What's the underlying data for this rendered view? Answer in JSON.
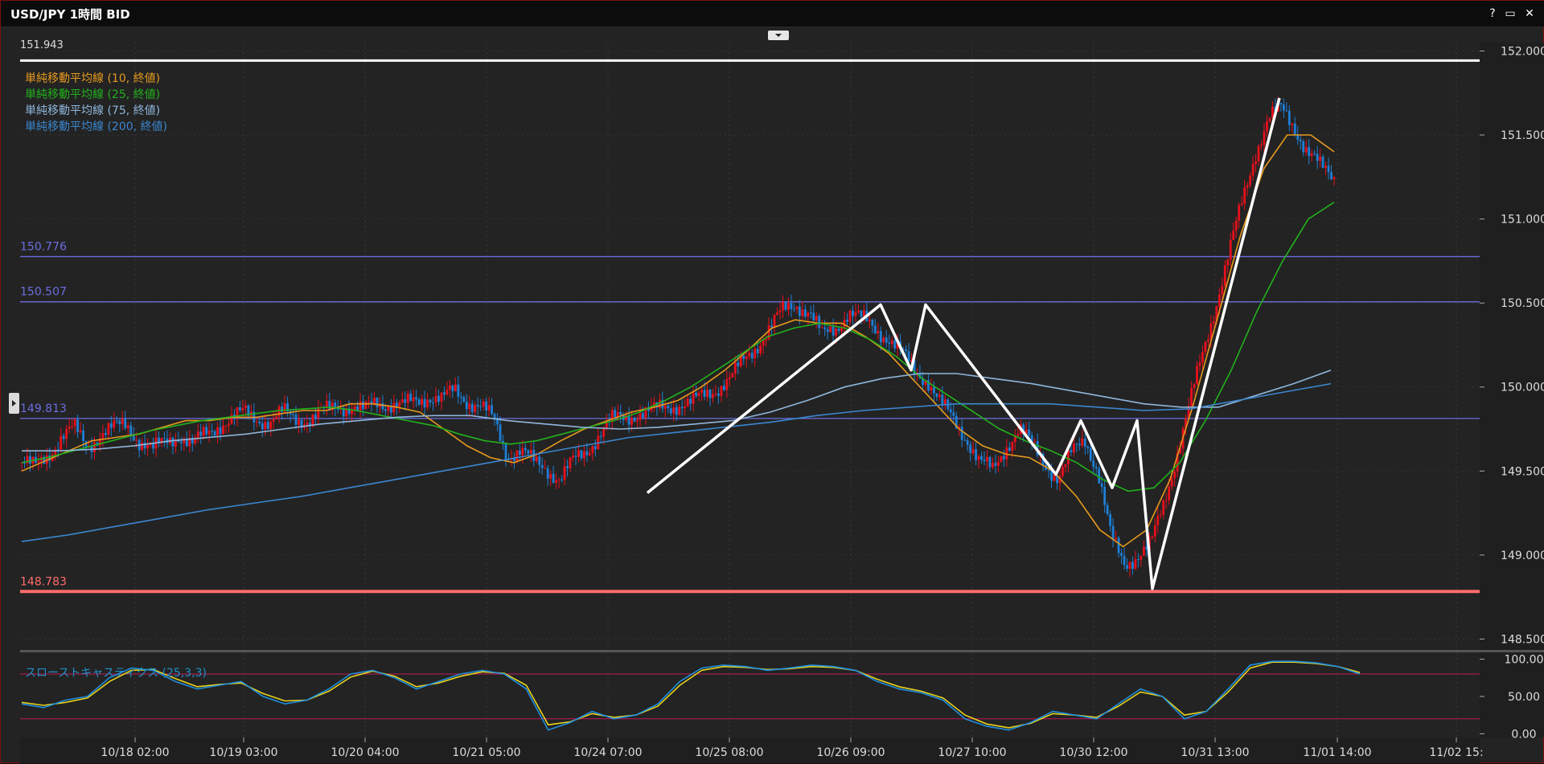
{
  "window": {
    "title": "USD/JPY 1時間 BID",
    "buttons": {
      "help": "?",
      "maximize": "▭",
      "close": "✕"
    }
  },
  "chart_data": {
    "type": "candlestick",
    "instrument": "USD/JPY",
    "timeframe": "1時間",
    "price_type": "BID",
    "top_price_label": "151.943",
    "ylim": [
      148.44,
      152.05
    ],
    "yticks": [
      {
        "value": 152.0,
        "label": "152.000"
      },
      {
        "value": 151.5,
        "label": "151.500"
      },
      {
        "value": 151.0,
        "label": "151.000"
      },
      {
        "value": 150.5,
        "label": "150.500"
      },
      {
        "value": 150.0,
        "label": "150.000"
      },
      {
        "value": 149.5,
        "label": "149.500"
      },
      {
        "value": 149.0,
        "label": "149.000"
      },
      {
        "value": 148.5,
        "label": "148.500"
      }
    ],
    "xlabels": [
      "10/18 02:00",
      "10/19 03:00",
      "10/20 04:00",
      "10/21 05:00",
      "10/24 07:00",
      "10/25 08:00",
      "10/26 09:00",
      "10/27 10:00",
      "10/30 12:00",
      "10/31 13:00",
      "11/01 14:00",
      "11/02 15:"
    ],
    "legend": [
      {
        "label": "単純移動平均線 (10, 終値)",
        "color": "#e69a1e"
      },
      {
        "label": "単純移動平均線 (25, 終値)",
        "color": "#22b21c"
      },
      {
        "label": "単純移動平均線 (75, 終値)",
        "color": "#8fb6da"
      },
      {
        "label": "単純移動平均線 (200, 終値)",
        "color": "#3b86cf"
      }
    ],
    "horizontal_lines": [
      {
        "value": 151.943,
        "color": "#ffffff"
      },
      {
        "value": 150.776,
        "label": "150.776",
        "color": "#6b6ee0"
      },
      {
        "value": 150.507,
        "label": "150.507",
        "color": "#6b6ee0"
      },
      {
        "value": 149.813,
        "label": "149.813",
        "color": "#6b6ee0"
      },
      {
        "value": 148.783,
        "label": "148.783",
        "color": "#ff6b6b"
      }
    ],
    "price_path_note_free": true,
    "price_path": [
      149.55,
      149.52,
      149.6,
      149.7,
      149.75,
      149.65,
      149.72,
      149.75,
      149.78,
      149.68,
      149.62,
      149.68,
      149.72,
      149.65,
      149.72,
      149.78,
      149.8,
      149.85,
      149.82,
      149.78,
      149.85,
      149.82,
      149.8,
      149.85,
      149.9,
      149.88,
      149.85,
      149.92,
      149.9,
      149.88,
      149.92,
      149.95,
      149.92,
      149.98,
      149.92,
      149.88,
      149.8,
      149.6,
      149.62,
      149.55,
      149.52,
      149.45,
      149.55,
      149.62,
      149.72,
      149.8,
      149.82,
      149.85,
      149.85,
      149.88,
      149.9,
      149.9,
      149.95,
      150.0,
      150.05,
      150.15,
      150.25,
      150.35,
      150.45,
      150.5,
      150.45,
      150.3,
      150.35,
      150.45,
      150.4,
      150.35,
      150.3,
      150.2,
      150.1,
      150.05,
      149.9,
      149.8,
      149.7,
      149.55,
      149.5,
      149.65,
      149.75,
      149.65,
      149.55,
      149.45,
      149.6,
      149.7,
      149.5,
      149.1,
      148.95,
      149.0,
      149.05,
      149.3,
      149.6,
      149.9,
      150.2,
      150.5,
      150.8,
      151.1,
      151.4,
      151.6,
      151.65,
      151.55,
      151.4,
      151.3,
      151.25
    ],
    "sma": [
      {
        "period": 10,
        "values": [
          149.5,
          149.56,
          149.62,
          149.68,
          149.7,
          149.72,
          149.76,
          149.8,
          149.8,
          149.82,
          149.82,
          149.84,
          149.86,
          149.86,
          149.9,
          149.9,
          149.88,
          149.85,
          149.75,
          149.65,
          149.58,
          149.55,
          149.6,
          149.68,
          149.75,
          149.8,
          149.85,
          149.88,
          149.92,
          150.0,
          150.1,
          150.22,
          150.35,
          150.4,
          150.38,
          150.38,
          150.3,
          150.2,
          150.05,
          149.9,
          149.75,
          149.65,
          149.6,
          149.58,
          149.5,
          149.35,
          149.15,
          149.05,
          149.15,
          149.45,
          149.9,
          150.4,
          150.9,
          151.3,
          151.5,
          151.5,
          151.4
        ]
      },
      {
        "period": 25,
        "values": [
          149.55,
          149.58,
          149.62,
          149.66,
          149.7,
          149.74,
          149.77,
          149.8,
          149.82,
          149.84,
          149.86,
          149.87,
          149.88,
          149.86,
          149.83,
          149.8,
          149.77,
          149.72,
          149.68,
          149.66,
          149.68,
          149.72,
          149.76,
          149.8,
          149.85,
          149.92,
          150.0,
          150.1,
          150.2,
          150.3,
          150.35,
          150.38,
          150.35,
          150.28,
          150.18,
          150.05,
          149.95,
          149.85,
          149.75,
          149.68,
          149.62,
          149.55,
          149.45,
          149.38,
          149.4,
          149.55,
          149.8,
          150.1,
          150.45,
          150.75,
          151.0,
          151.1
        ]
      },
      {
        "period": 75,
        "values": [
          149.62,
          149.62,
          149.63,
          149.65,
          149.68,
          149.7,
          149.72,
          149.75,
          149.78,
          149.8,
          149.82,
          149.83,
          149.83,
          149.8,
          149.78,
          149.76,
          149.75,
          149.76,
          149.78,
          149.8,
          149.85,
          149.92,
          150.0,
          150.05,
          150.08,
          150.08,
          150.05,
          150.02,
          149.98,
          149.94,
          149.9,
          149.88,
          149.88,
          149.95,
          150.02,
          150.1
        ]
      },
      {
        "period": 200,
        "values": [
          149.08,
          149.12,
          149.17,
          149.22,
          149.27,
          149.31,
          149.35,
          149.4,
          149.45,
          149.5,
          149.55,
          149.6,
          149.65,
          149.7,
          149.73,
          149.76,
          149.79,
          149.83,
          149.86,
          149.88,
          149.9,
          149.9,
          149.9,
          149.88,
          149.86,
          149.87,
          149.92,
          149.97,
          150.02
        ]
      }
    ],
    "trend_lines": [
      [
        149.37,
        150.49,
        150.1,
        150.49,
        149.48,
        149.8,
        149.4,
        149.8,
        148.8,
        151.72
      ]
    ],
    "oscillator": {
      "title": "スローストキャスティクス (25,3,3)",
      "ylim": [
        -5,
        108
      ],
      "yticks": [
        {
          "value": 100,
          "label": "100.00"
        },
        {
          "value": 50,
          "label": "50.00"
        },
        {
          "value": 0,
          "label": "0.00"
        }
      ],
      "levels": [
        80,
        20
      ],
      "k": [
        40,
        35,
        45,
        50,
        75,
        88,
        85,
        70,
        60,
        65,
        70,
        50,
        40,
        45,
        60,
        80,
        85,
        75,
        60,
        70,
        80,
        85,
        80,
        60,
        5,
        15,
        30,
        20,
        25,
        40,
        70,
        88,
        92,
        90,
        85,
        88,
        92,
        90,
        85,
        70,
        60,
        55,
        45,
        20,
        10,
        5,
        15,
        30,
        25,
        20,
        40,
        60,
        50,
        20,
        30,
        60,
        92,
        97,
        97,
        95,
        90,
        80
      ],
      "d": [
        42,
        38,
        42,
        48,
        70,
        85,
        86,
        74,
        63,
        66,
        68,
        54,
        44,
        45,
        57,
        76,
        84,
        77,
        63,
        68,
        77,
        83,
        81,
        65,
        12,
        16,
        27,
        22,
        25,
        37,
        65,
        85,
        90,
        89,
        86,
        87,
        90,
        89,
        85,
        73,
        63,
        57,
        48,
        25,
        13,
        8,
        14,
        27,
        25,
        22,
        37,
        56,
        50,
        25,
        30,
        56,
        88,
        96,
        96,
        94,
        90,
        82
      ]
    }
  }
}
